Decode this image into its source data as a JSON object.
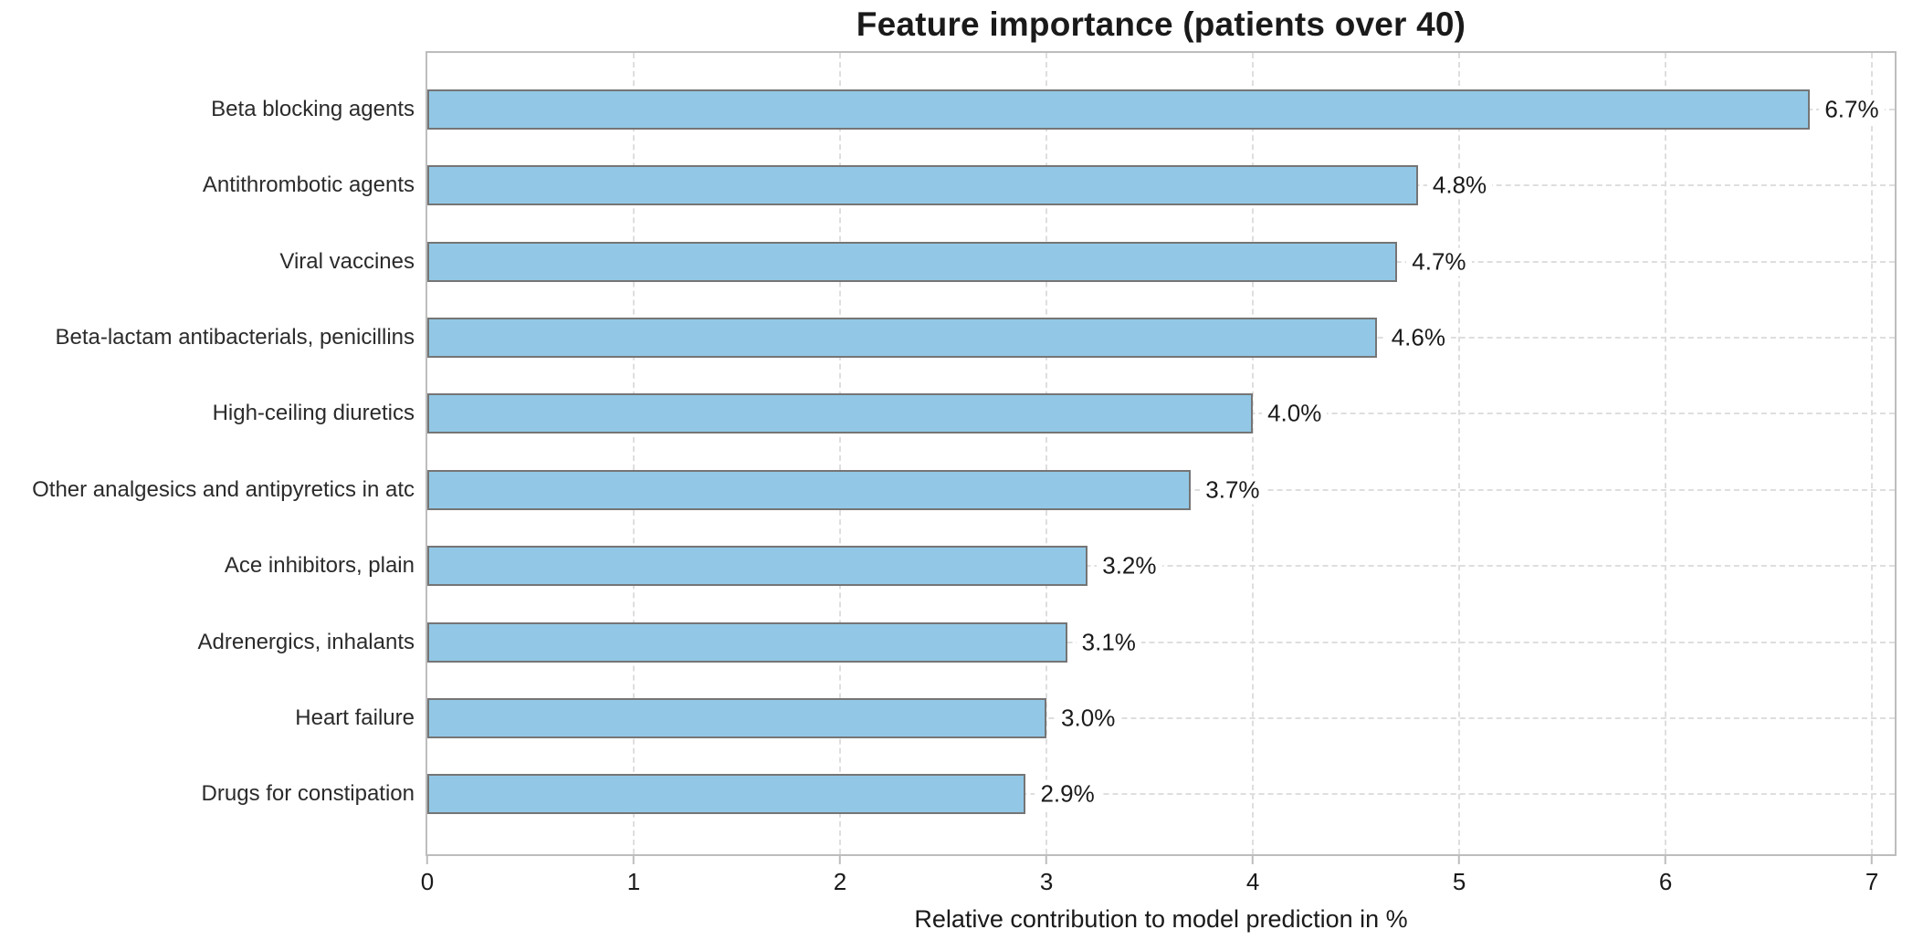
{
  "chart_data": {
    "type": "bar",
    "orientation": "horizontal",
    "title": "Feature importance (patients over 40)",
    "xlabel": "Relative contribution to model prediction in %",
    "ylabel": "",
    "categories": [
      "Beta blocking agents",
      "Antithrombotic agents",
      "Viral vaccines",
      "Beta-lactam antibacterials, penicillins",
      "High-ceiling diuretics",
      "Other analgesics and antipyretics in atc",
      "Ace inhibitors, plain",
      "Adrenergics, inhalants",
      "Heart failure",
      "Drugs for constipation"
    ],
    "values": [
      6.7,
      4.8,
      4.7,
      4.6,
      4.0,
      3.7,
      3.2,
      3.1,
      3.0,
      2.9
    ],
    "value_labels": [
      "6.7%",
      "4.8%",
      "4.7%",
      "4.6%",
      "4.0%",
      "3.7%",
      "3.2%",
      "3.1%",
      "3.0%",
      "2.9%"
    ],
    "x_ticks": [
      0,
      1,
      2,
      3,
      4,
      5,
      6,
      7
    ],
    "x_tick_labels": [
      "0",
      "1",
      "2",
      "3",
      "4",
      "5",
      "6",
      "7"
    ],
    "xlim": [
      0,
      7.11
    ],
    "grid": "dashed gridlines on both axes",
    "legend": "none",
    "colors": {
      "bar_fill": "#92c8e6",
      "bar_border": "#757575",
      "gridline": "#dedede",
      "spine": "#bdbdbd",
      "text": "#1a1a1a"
    }
  }
}
